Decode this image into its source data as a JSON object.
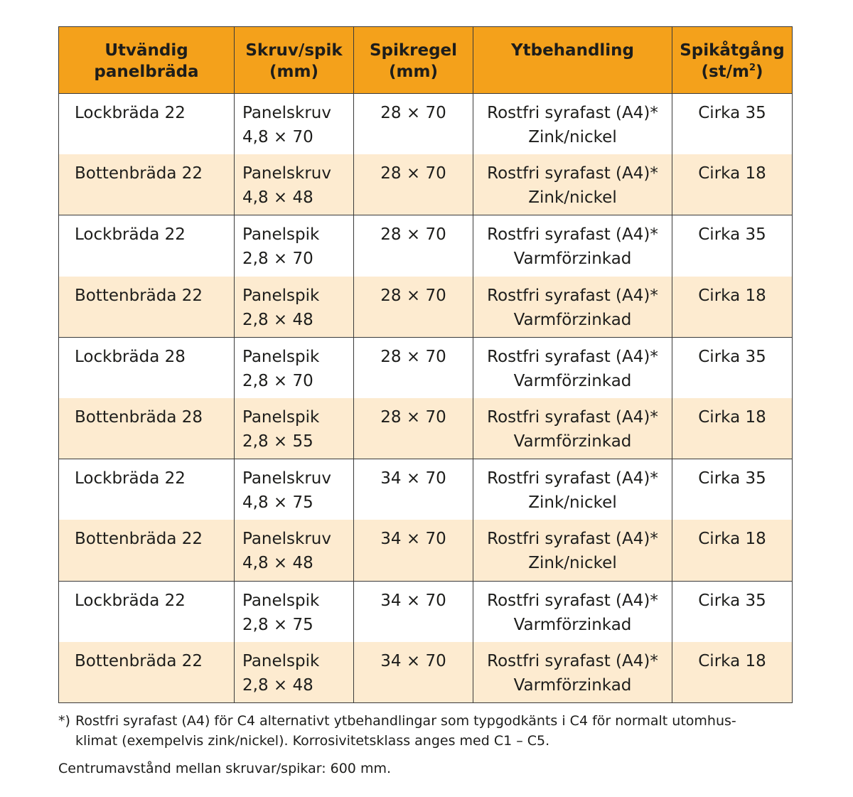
{
  "header": {
    "panel_line1": "Utvändig",
    "panel_line2": "panelbräda",
    "fastener_line1": "Skruv/spik",
    "fastener_line2": "(mm)",
    "batten_line1": "Spikregel",
    "batten_line2": "(mm)",
    "surface": "Ytbehandling",
    "usage_line1": "Spikåtgång",
    "usage_line2a": "(st/m",
    "usage_sup": "2",
    "usage_line2b": ")"
  },
  "rows": [
    {
      "panel": "Lockbräda 22",
      "fastener1": "Panelskruv",
      "fastener2": "4,8 × 70",
      "batten": "28 × 70",
      "surface1": "Rostfri syrafast (A4)*",
      "surface2": "Zink/nickel",
      "usage": "Cirka 35"
    },
    {
      "panel": "Bottenbräda 22",
      "fastener1": "Panelskruv",
      "fastener2": "4,8 × 48",
      "batten": "28 × 70",
      "surface1": "Rostfri syrafast (A4)*",
      "surface2": "Zink/nickel",
      "usage": "Cirka 18"
    },
    {
      "panel": "Lockbräda 22",
      "fastener1": "Panelspik",
      "fastener2": "2,8 × 70",
      "batten": "28 × 70",
      "surface1": "Rostfri syrafast (A4)*",
      "surface2": "Varmförzinkad",
      "usage": "Cirka 35"
    },
    {
      "panel": "Bottenbräda 22",
      "fastener1": "Panelspik",
      "fastener2": "2,8 × 48",
      "batten": "28 × 70",
      "surface1": "Rostfri syrafast (A4)*",
      "surface2": "Varmförzinkad",
      "usage": "Cirka 18"
    },
    {
      "panel": "Lockbräda 28",
      "fastener1": "Panelspik",
      "fastener2": "2,8 × 70",
      "batten": "28 × 70",
      "surface1": "Rostfri syrafast (A4)*",
      "surface2": "Varmförzinkad",
      "usage": "Cirka 35"
    },
    {
      "panel": "Bottenbräda 28",
      "fastener1": "Panelspik",
      "fastener2": "2,8 × 55",
      "batten": "28 × 70",
      "surface1": "Rostfri syrafast (A4)*",
      "surface2": "Varmförzinkad",
      "usage": "Cirka 18"
    },
    {
      "panel": "Lockbräda 22",
      "fastener1": "Panelskruv",
      "fastener2": "4,8 × 75",
      "batten": "34 × 70",
      "surface1": "Rostfri syrafast (A4)*",
      "surface2": "Zink/nickel",
      "usage": "Cirka 35"
    },
    {
      "panel": "Bottenbräda 22",
      "fastener1": "Panelskruv",
      "fastener2": "4,8 × 48",
      "batten": "34 × 70",
      "surface1": "Rostfri syrafast (A4)*",
      "surface2": "Zink/nickel",
      "usage": "Cirka 18"
    },
    {
      "panel": "Lockbräda 22",
      "fastener1": "Panelspik",
      "fastener2": "2,8 × 75",
      "batten": "34 × 70",
      "surface1": "Rostfri syrafast (A4)*",
      "surface2": "Varmförzinkad",
      "usage": "Cirka 35"
    },
    {
      "panel": "Bottenbräda 22",
      "fastener1": "Panelspik",
      "fastener2": "2,8 × 48",
      "batten": "34 × 70",
      "surface1": "Rostfri syrafast (A4)*",
      "surface2": "Varmförzinkad",
      "usage": "Cirka 18"
    }
  ],
  "footnote": {
    "mark": "*)",
    "line1": "Rostfri syrafast (A4) för C4 alternativt ytbehandlingar som typgodkänts i C4 för normalt utomhus-",
    "line2": "klimat (exempelvis zink/nickel). Korrosivitetsklass anges med C1 – C5."
  },
  "centre_note": "Centrumavstånd mellan skruvar/spikar: 600 mm.",
  "colors": {
    "header_bg": "#f4a11b",
    "odd_row_bg": "#fdebd0",
    "even_row_bg": "#ffffff",
    "border": "#3a3a3a",
    "text": "#1d1d1b"
  }
}
